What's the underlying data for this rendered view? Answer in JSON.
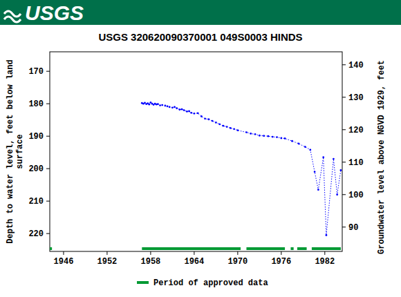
{
  "header": {
    "logo": "USGS"
  },
  "chart_data": {
    "type": "scatter",
    "title": "USGS 320620090370001 049S0003  HINDS",
    "y_label": [
      "Depth to water level, feet below land",
      "surface"
    ],
    "y2_label": "Groundwater level above NGVD 1929, feet",
    "xlim": [
      1944.1,
      1984.4
    ],
    "xticks": [
      1946,
      1952,
      1958,
      1964,
      1970,
      1976,
      1982
    ],
    "ylim": [
      225.5,
      164
    ],
    "yticks": [
      170,
      180,
      190,
      200,
      210,
      220
    ],
    "y2lim": [
      82.5,
      144
    ],
    "y2ticks": [
      90,
      100,
      110,
      120,
      130,
      140
    ],
    "marker": "dot",
    "line_style": "dotted",
    "series": [
      {
        "color": "#0000ff",
        "x": [
          1956.8,
          1957.0,
          1957.2,
          1957.4,
          1957.6,
          1957.8,
          1958.0,
          1958.2,
          1958.4,
          1958.6,
          1958.8,
          1959.0,
          1959.3,
          1959.6,
          1960.0,
          1960.3,
          1960.6,
          1961.0,
          1961.3,
          1961.6,
          1962.0,
          1962.3,
          1962.6,
          1963.0,
          1963.3,
          1963.6,
          1964.0,
          1964.5,
          1965.0,
          1965.5,
          1966.0,
          1966.5,
          1967.0,
          1967.5,
          1968.0,
          1968.5,
          1969.0,
          1969.5,
          1970.0,
          1971.2,
          1971.8,
          1972.4,
          1973.0,
          1973.6,
          1974.2,
          1974.8,
          1975.4,
          1976.0,
          1976.5,
          1977.5,
          1978.4,
          1979.3,
          1980.0,
          1980.6,
          1981.1,
          1981.8,
          1982.2,
          1983.2,
          1983.7,
          1984.2
        ],
        "values": [
          179.8,
          180.0,
          179.7,
          180.1,
          179.9,
          180.2,
          179.6,
          180.0,
          180.3,
          180.0,
          180.2,
          180.1,
          180.5,
          180.4,
          180.6,
          180.8,
          181.0,
          181.2,
          181.0,
          181.4,
          181.8,
          181.7,
          182.0,
          182.4,
          182.3,
          182.8,
          183.0,
          182.9,
          183.9,
          184.6,
          184.8,
          185.3,
          185.8,
          186.3,
          186.8,
          187.1,
          187.5,
          187.8,
          188.2,
          188.8,
          189.2,
          189.4,
          189.8,
          189.9,
          190.0,
          190.2,
          190.3,
          190.6,
          190.7,
          191.5,
          192.3,
          193.3,
          194.2,
          201.0,
          206.5,
          196.5,
          220.5,
          197.0,
          208.0,
          200.5
        ]
      }
    ],
    "approved_periods": {
      "name": "Period of approved data",
      "color": "#009933",
      "periods": [
        [
          1944.1,
          1944.4
        ],
        [
          1956.8,
          1970.4
        ],
        [
          1971.2,
          1976.5
        ],
        [
          1977.3,
          1977.7
        ],
        [
          1978.2,
          1979.5
        ],
        [
          1980.2,
          1984.2
        ]
      ]
    }
  }
}
